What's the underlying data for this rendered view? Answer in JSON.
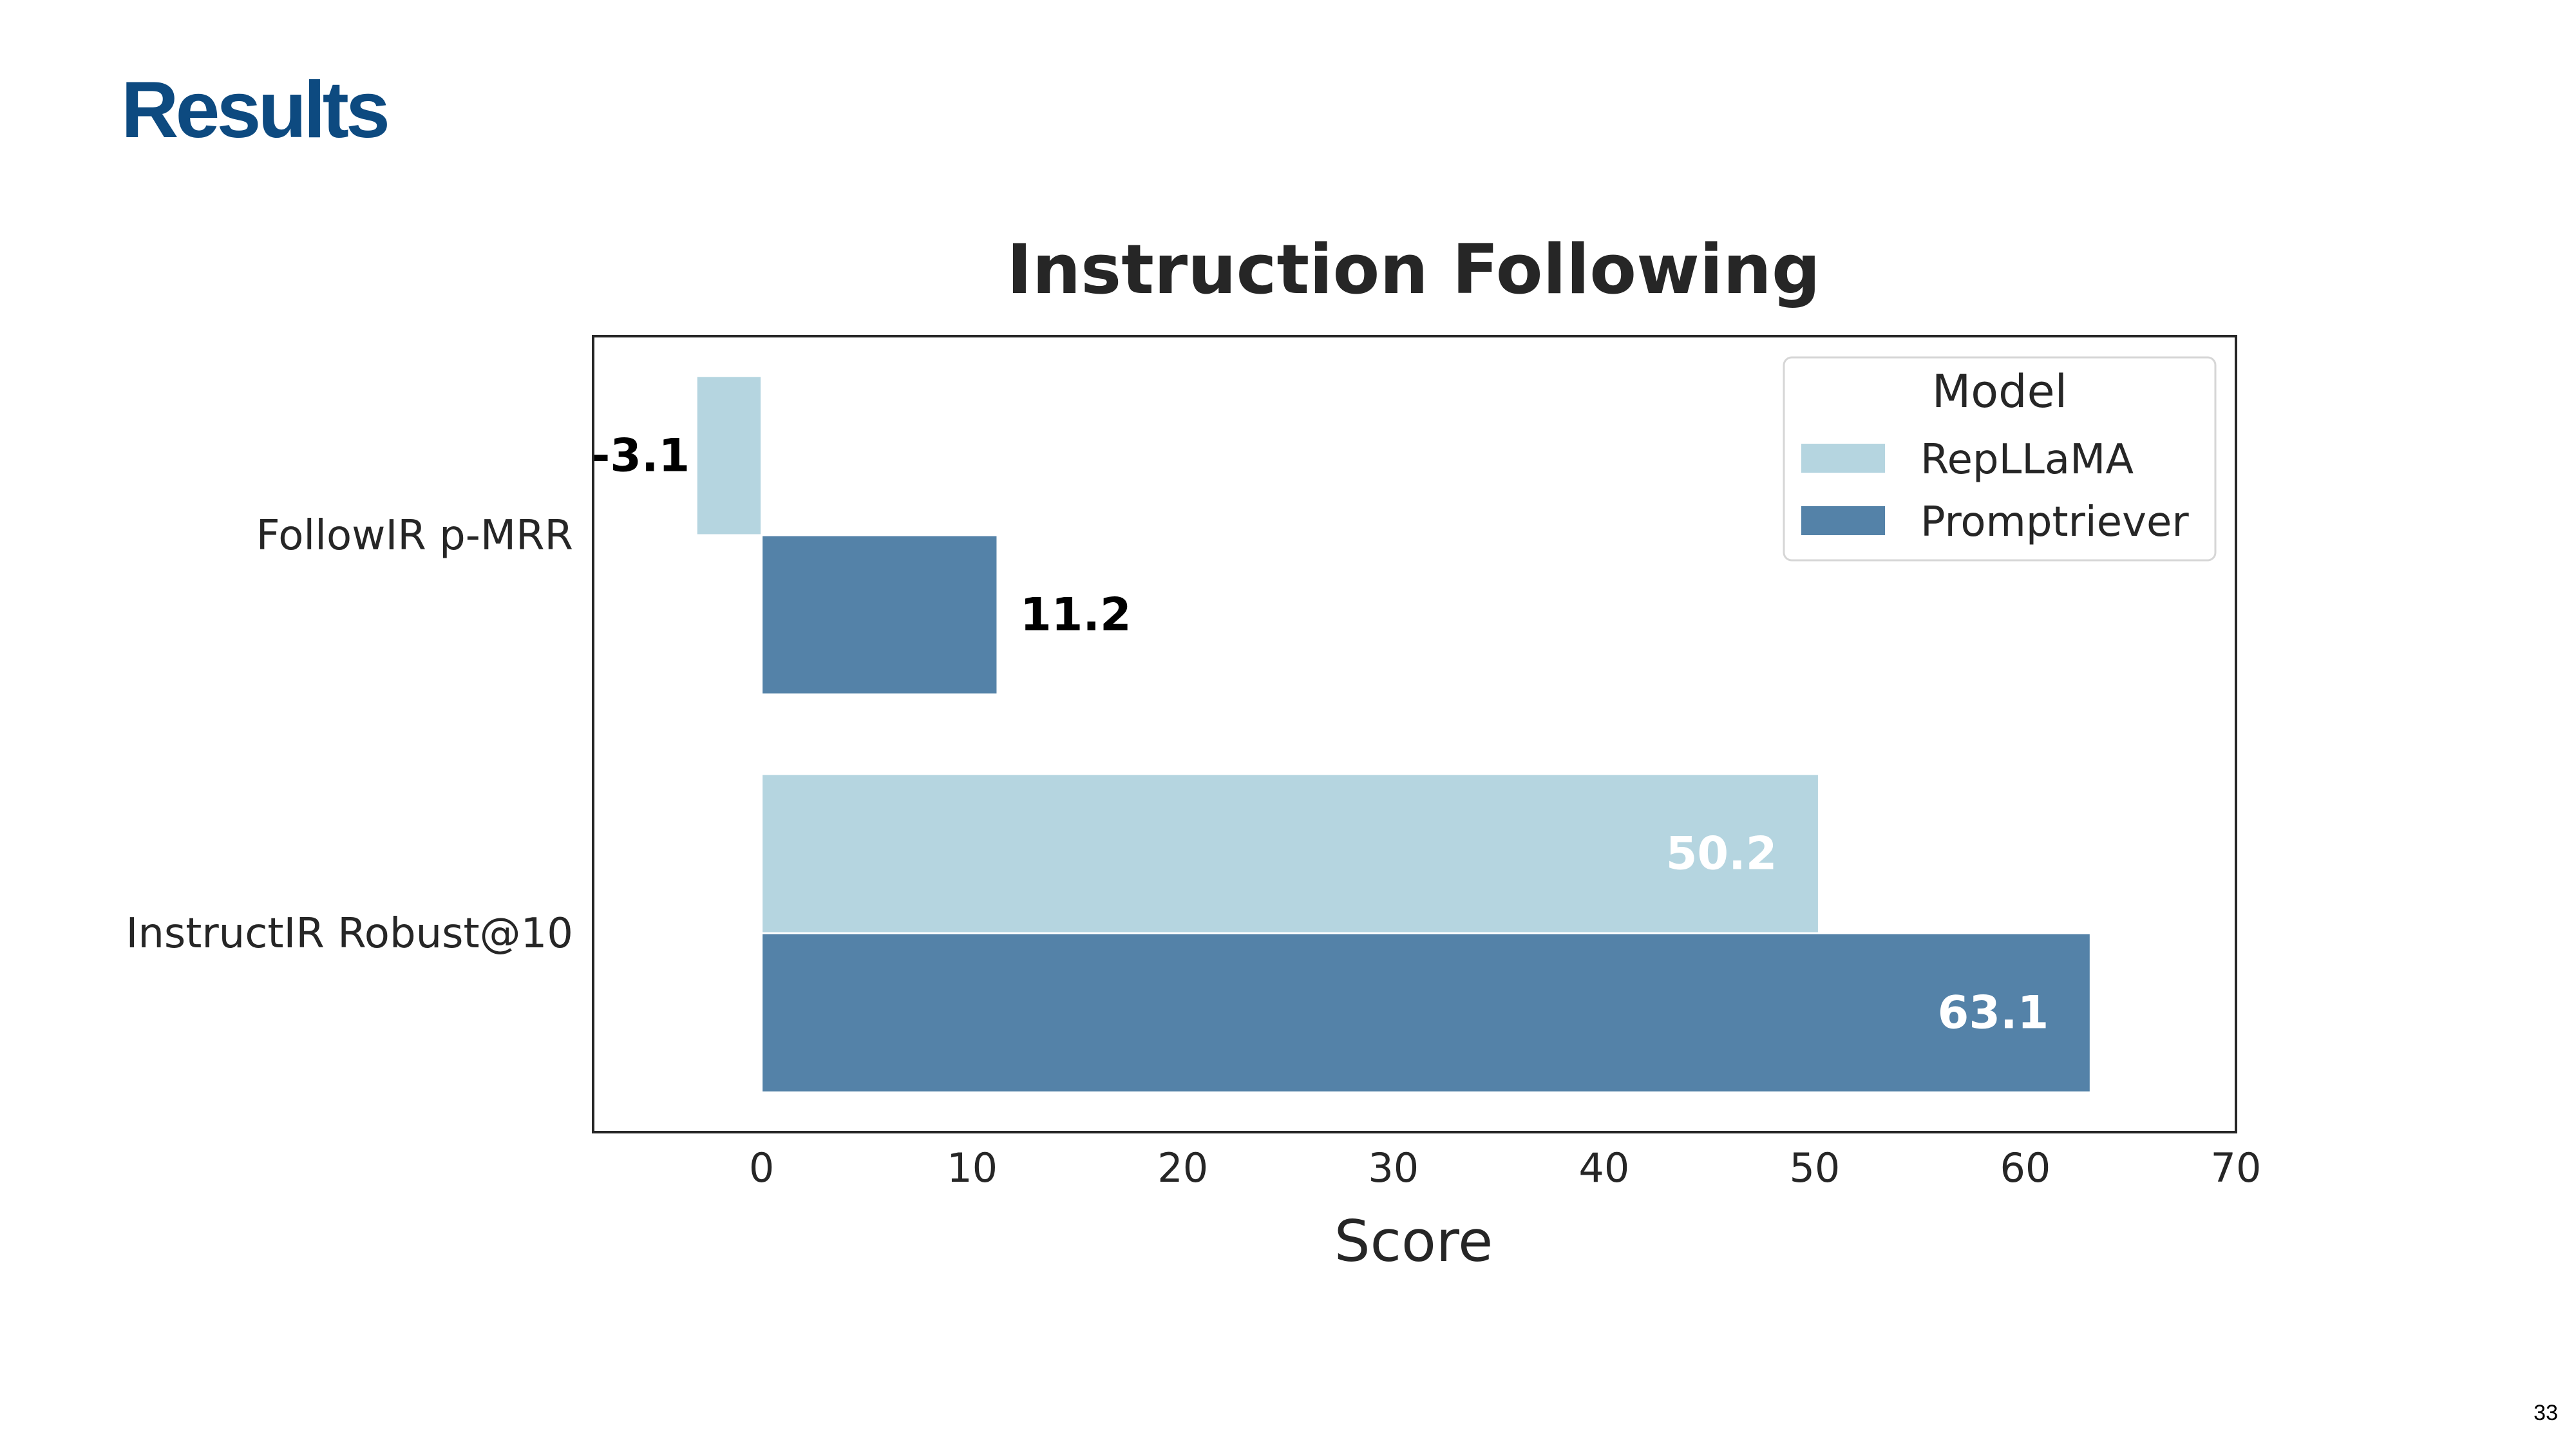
{
  "slide": {
    "title": "Results",
    "page_number": "33"
  },
  "colors": {
    "title": "#0d4a80",
    "text": "#262626",
    "RepLLaMA": "#b5d5e0",
    "Promptriever": "#5482a8"
  },
  "chart_data": {
    "type": "bar",
    "orientation": "horizontal",
    "title": "Instruction Following",
    "xlabel": "Score",
    "ylabel": "",
    "categories": [
      "FollowIR p-MRR",
      "InstructIR Robust@10"
    ],
    "series": [
      {
        "name": "RepLLaMA",
        "values": [
          -3.1,
          50.2
        ]
      },
      {
        "name": "Promptriever",
        "values": [
          11.2,
          63.1
        ]
      }
    ],
    "data_labels": [
      [
        "-3.1",
        "50.2"
      ],
      [
        "11.2",
        "63.1"
      ]
    ],
    "xlim": [
      -8,
      70
    ],
    "xticks": [
      0,
      10,
      20,
      30,
      40,
      50,
      60,
      70
    ],
    "grid": false,
    "legend": {
      "title": "Model",
      "position": "top-right"
    }
  }
}
